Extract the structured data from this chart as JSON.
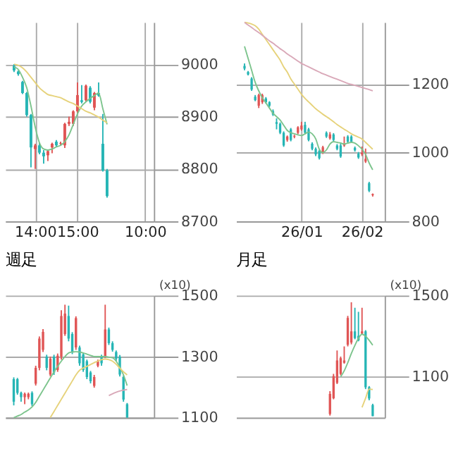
{
  "chart_data": [
    {
      "type": "candlestick",
      "categories": [
        null,
        null,
        null,
        null,
        null,
        "14:00",
        null,
        null,
        null,
        null,
        null,
        null,
        null,
        null,
        null,
        "15:00",
        null,
        null,
        null,
        null,
        null,
        null,
        null,
        null,
        null,
        null,
        null,
        null,
        null,
        null,
        null,
        "10:00"
      ],
      "ohlc": [
        [
          8997,
          9000,
          8985,
          8988
        ],
        [
          8986,
          8988,
          8978,
          8981
        ],
        [
          8966,
          8968,
          8943,
          8945
        ],
        [
          8945,
          8947,
          8900,
          8903
        ],
        [
          8903,
          8905,
          8803,
          8841
        ],
        [
          8838,
          8848,
          8800,
          8845
        ],
        [
          8845,
          8850,
          8828,
          8831
        ],
        [
          8831,
          8836,
          8810,
          8824
        ],
        [
          8826,
          8836,
          8815,
          8834
        ],
        [
          8841,
          8850,
          8830,
          8848
        ],
        [
          8852,
          8855,
          8842,
          8845
        ],
        [
          8848,
          8852,
          8844,
          8849
        ],
        [
          8845,
          8888,
          8840,
          8886
        ],
        [
          8886,
          8900,
          8882,
          8890
        ],
        [
          8886,
          8912,
          8882,
          8910
        ],
        [
          8910,
          8965,
          8905,
          8941
        ],
        [
          8931,
          8960,
          8925,
          8928
        ],
        [
          8931,
          8961,
          8928,
          8959
        ],
        [
          8955,
          8958,
          8925,
          8928
        ],
        [
          8917,
          8947,
          8912,
          8945
        ],
        [
          8945,
          8965,
          8938,
          8940
        ],
        [
          8848,
          8905,
          8795,
          8797
        ],
        [
          8797,
          8800,
          8745,
          8748
        ],
        null,
        null,
        null,
        null,
        null,
        null,
        null,
        null,
        null
      ],
      "colors": [
        "#26b5b5",
        "#26b5b5",
        "#26b5b5",
        "#26b5b5",
        "#26b5b5",
        "#e05555",
        "#26b5b5",
        "#26b5b5",
        "#e05555",
        "#e05555",
        "#26b5b5",
        "#e05555",
        "#e05555",
        "#e05555",
        "#e05555",
        "#e05555",
        "#26b5b5",
        "#e05555",
        "#26b5b5",
        "#e05555",
        "#26b5b5",
        "#26b5b5",
        "#26b5b5",
        null,
        null,
        null,
        null,
        null,
        null,
        null,
        null,
        null
      ],
      "series": [
        {
          "type": "line",
          "color": "#7cc48c",
          "values": [
            8995,
            8990,
            8975,
            8955,
            8920,
            8880,
            8850,
            8838,
            8836,
            8838,
            8842,
            8845,
            8852,
            8865,
            8885,
            8905,
            8920,
            8928,
            8935,
            8940,
            8945,
            8915,
            8885,
            null,
            null,
            null,
            null,
            null,
            null,
            null,
            null,
            null
          ]
        },
        {
          "type": "line",
          "color": "#e6d27a",
          "values": [
            9000,
            8998,
            8993,
            8985,
            8975,
            8965,
            8955,
            8948,
            8942,
            8940,
            8938,
            8936,
            8932,
            8928,
            8925,
            8920,
            8915,
            8910,
            8907,
            8903,
            8899,
            8893,
            8888,
            null,
            null,
            null,
            null,
            null,
            null,
            null,
            null,
            null
          ]
        }
      ],
      "ylim": [
        8700,
        9080
      ],
      "yticks": [
        8700,
        8800,
        8900,
        9000
      ],
      "grid": true
    },
    {
      "type": "candlestick",
      "categories": [
        null,
        null,
        null,
        null,
        null,
        null,
        null,
        null,
        null,
        null,
        null,
        null,
        null,
        null,
        null,
        null,
        "26/01",
        null,
        null,
        null,
        null,
        null,
        null,
        null,
        null,
        null,
        null,
        null,
        null,
        null,
        null,
        null,
        null,
        "26/02",
        null,
        null,
        null,
        null
      ],
      "ohlc": [
        [
          1253,
          1260,
          1240,
          1245
        ],
        [
          1235,
          1238,
          1225,
          1228
        ],
        [
          1216,
          1220,
          1180,
          1184
        ],
        [
          1163,
          1168,
          1150,
          1153
        ],
        [
          1137,
          1172,
          1130,
          1168
        ],
        [
          1147,
          1172,
          1142,
          1168
        ],
        [
          1158,
          1162,
          1143,
          1147
        ],
        [
          1147,
          1150,
          1133,
          1137
        ],
        [
          1121,
          1126,
          1107,
          1111
        ],
        [
          1089,
          1100,
          1068,
          1084
        ],
        [
          1084,
          1088,
          1054,
          1058
        ],
        [
          1058,
          1062,
          1017,
          1021
        ],
        [
          1037,
          1050,
          1032,
          1047
        ],
        [
          1068,
          1072,
          1033,
          1037
        ],
        [
          1047,
          1052,
          1042,
          1049
        ],
        [
          1058,
          1077,
          1054,
          1074
        ],
        [
          1068,
          1090,
          1064,
          1079
        ],
        [
          1081,
          1090,
          1054,
          1058
        ],
        [
          1068,
          1072,
          1033,
          1037
        ],
        [
          1026,
          1030,
          1007,
          1011
        ],
        [
          1011,
          1015,
          990,
          995
        ],
        [
          1005,
          1008,
          980,
          984
        ],
        [
          1000,
          1020,
          996,
          1016
        ],
        [
          1058,
          1062,
          1043,
          1047
        ],
        [
          1042,
          1060,
          1038,
          1053
        ],
        [
          1053,
          1057,
          1033,
          1037
        ],
        [
          1021,
          1025,
          1007,
          1011
        ],
        [
          1021,
          1026,
          985,
          989
        ],
        [
          1021,
          1047,
          1017,
          1026
        ],
        [
          1047,
          1051,
          1028,
          1032
        ],
        [
          1047,
          1051,
          1028,
          1032
        ],
        [
          1014,
          1018,
          1003,
          1007
        ],
        [
          997,
          1002,
          982,
          986
        ],
        [
          995,
          1018,
          990,
          1000
        ],
        [
          974,
          1012,
          970,
          982
        ],
        [
          911,
          915,
          885,
          889
        ],
        [
          876,
          881,
          872,
          879
        ],
        null
      ],
      "colors": [
        "#26b5b5",
        "#26b5b5",
        "#26b5b5",
        "#26b5b5",
        "#e05555",
        "#e05555",
        "#26b5b5",
        "#26b5b5",
        "#26b5b5",
        "#26b5b5",
        "#26b5b5",
        "#26b5b5",
        "#e05555",
        "#26b5b5",
        "#e05555",
        "#e05555",
        "#e05555",
        "#26b5b5",
        "#26b5b5",
        "#26b5b5",
        "#26b5b5",
        "#26b5b5",
        "#e05555",
        "#26b5b5",
        "#e05555",
        "#26b5b5",
        "#26b5b5",
        "#26b5b5",
        "#e05555",
        "#26b5b5",
        "#26b5b5",
        "#26b5b5",
        "#26b5b5",
        "#e05555",
        "#e05555",
        "#26b5b5",
        "#e05555",
        null
      ],
      "series": [
        {
          "type": "line",
          "color": "#7cc48c",
          "values": [
            1310,
            1275,
            1240,
            1205,
            1180,
            1160,
            1145,
            1130,
            1115,
            1105,
            1095,
            1080,
            1065,
            1058,
            1055,
            1052,
            1050,
            1055,
            1060,
            1055,
            1040,
            1010,
            1000,
            1008,
            1025,
            1032,
            1030,
            1028,
            1025,
            1028,
            1030,
            1028,
            1020,
            1010,
            995,
            970,
            950,
            null
          ]
        },
        {
          "type": "line",
          "color": "#e6d27a",
          "values": [
            1380,
            1378,
            1375,
            1370,
            1360,
            1345,
            1330,
            1315,
            1300,
            1285,
            1270,
            1250,
            1235,
            1215,
            1200,
            1185,
            1170,
            1158,
            1148,
            1138,
            1128,
            1120,
            1112,
            1105,
            1098,
            1090,
            1082,
            1075,
            1068,
            1062,
            1055,
            1050,
            1045,
            1040,
            1030,
            1020,
            1010,
            null
          ]
        },
        {
          "type": "line",
          "color": "#d9a8b8",
          "values": [
            1380,
            1372,
            1365,
            1357,
            1350,
            1342,
            1334,
            1326,
            1319,
            1311,
            1303,
            1296,
            1288,
            1281,
            1274,
            1267,
            1260,
            1255,
            1250,
            1245,
            1240,
            1235,
            1230,
            1226,
            1222,
            1218,
            1214,
            1210,
            1206,
            1202,
            1199,
            1196,
            1193,
            1190,
            1187,
            1184,
            1180,
            null
          ]
        }
      ],
      "ylim": [
        800,
        1380
      ],
      "yticks": [
        800,
        1000,
        1200
      ],
      "grid": true
    },
    {
      "type": "candlestick",
      "title": "週足",
      "annotations": [
        "(x10)"
      ],
      "tick_labels": "y",
      "categories": [
        null,
        null,
        null,
        null,
        null,
        null,
        null,
        null,
        null,
        null,
        null,
        null,
        null,
        null,
        null,
        null,
        null,
        null,
        null,
        null,
        null,
        null,
        null,
        null,
        null,
        null,
        null,
        null,
        null,
        null,
        null,
        null,
        null,
        null,
        null,
        null,
        null
      ],
      "ohlc": [
        [
          1226,
          1232,
          1140,
          1152
        ],
        [
          1226,
          1230,
          1175,
          1181
        ],
        [
          1181,
          1185,
          1152,
          1167
        ],
        [
          1167,
          1182,
          1144,
          1178
        ],
        [
          1167,
          1182,
          1160,
          1178
        ],
        [
          1181,
          1186,
          1138,
          1144
        ],
        [
          1211,
          1270,
          1205,
          1263
        ],
        [
          1263,
          1366,
          1255,
          1359
        ],
        [
          1322,
          1390,
          1315,
          1381
        ],
        [
          1300,
          1306,
          1255,
          1263
        ],
        [
          1241,
          1300,
          1235,
          1293
        ],
        [
          1300,
          1306,
          1240,
          1248
        ],
        [
          1256,
          1310,
          1250,
          1303
        ],
        [
          1300,
          1452,
          1290,
          1433
        ],
        [
          1374,
          1470,
          1368,
          1441
        ],
        [
          1433,
          1467,
          1350,
          1359
        ],
        [
          1374,
          1380,
          1308,
          1315
        ],
        [
          1330,
          1432,
          1322,
          1426
        ],
        [
          1330,
          1336,
          1270,
          1278
        ],
        [
          1307,
          1312,
          1250,
          1256
        ],
        [
          1285,
          1290,
          1226,
          1233
        ],
        [
          1248,
          1253,
          1212,
          1219
        ],
        [
          1204,
          1240,
          1198,
          1233
        ],
        [
          1270,
          1290,
          1265,
          1285
        ],
        [
          1300,
          1306,
          1270,
          1278
        ],
        [
          1300,
          1470,
          1295,
          1389
        ],
        [
          1389,
          1395,
          1338,
          1344
        ],
        [
          1344,
          1350,
          1316,
          1322
        ],
        [
          1315,
          1320,
          1286,
          1293
        ],
        [
          1300,
          1305,
          1235,
          1241
        ],
        [
          1233,
          1238,
          1152,
          1159
        ],
        [
          1144,
          1148,
          1100,
          1100
        ],
        null,
        null,
        null,
        null,
        null
      ],
      "colors": [
        "#26b5b5",
        "#26b5b5",
        "#26b5b5",
        "#e05555",
        "#e05555",
        "#26b5b5",
        "#e05555",
        "#e05555",
        "#e05555",
        "#26b5b5",
        "#e05555",
        "#26b5b5",
        "#e05555",
        "#e05555",
        "#e05555",
        "#26b5b5",
        "#26b5b5",
        "#e05555",
        "#26b5b5",
        "#26b5b5",
        "#26b5b5",
        "#26b5b5",
        "#e05555",
        "#e05555",
        "#26b5b5",
        "#e05555",
        "#26b5b5",
        "#26b5b5",
        "#26b5b5",
        "#26b5b5",
        "#26b5b5",
        "#26b5b5",
        null,
        null,
        null,
        null,
        null
      ],
      "series": [
        {
          "type": "line",
          "color": "#7cc48c",
          "values": [
            1100,
            1105,
            1110,
            1118,
            1125,
            1135,
            1150,
            1170,
            1190,
            1210,
            1230,
            1250,
            1268,
            1285,
            1300,
            1312,
            1315,
            1316,
            1315,
            1312,
            1308,
            1304,
            1300,
            1300,
            1300,
            1300,
            1298,
            1296,
            1285,
            1265,
            1240,
            1205,
            null,
            null,
            null,
            null,
            null
          ]
        },
        {
          "type": "line",
          "color": "#e6d27a",
          "values": [
            null,
            null,
            null,
            null,
            null,
            null,
            null,
            null,
            null,
            null,
            1100,
            1120,
            1140,
            1160,
            1180,
            1200,
            1220,
            1240,
            1255,
            1262,
            1268,
            1274,
            1280,
            1285,
            1290,
            1292,
            1290,
            1285,
            1275,
            1262,
            1250,
            1240,
            null,
            null,
            null,
            null,
            null
          ]
        },
        {
          "type": "line",
          "color": "#d9a8b8",
          "values": [
            null,
            null,
            null,
            null,
            null,
            null,
            null,
            null,
            null,
            null,
            null,
            null,
            null,
            null,
            null,
            null,
            null,
            null,
            null,
            null,
            null,
            null,
            null,
            null,
            null,
            null,
            1172,
            1178,
            1183,
            1187,
            1190,
            1192,
            null,
            null,
            null,
            null,
            null
          ]
        }
      ],
      "ylim": [
        1100,
        1500
      ],
      "yticks": [
        1100,
        1300,
        1500
      ],
      "grid": "y"
    },
    {
      "type": "candlestick",
      "title": "月足",
      "annotations": [
        "(x10)"
      ],
      "tick_labels": "y",
      "categories": [
        null,
        null,
        null,
        null,
        null,
        null,
        null,
        null,
        null,
        null,
        null,
        null,
        null,
        null,
        null,
        null,
        null,
        null,
        null,
        null,
        null,
        null,
        null,
        null,
        null,
        null,
        null,
        null,
        null,
        null,
        null,
        null,
        null,
        null,
        null,
        null,
        null,
        null
      ],
      "ohlc": [
        null,
        null,
        null,
        null,
        null,
        null,
        null,
        null,
        null,
        null,
        null,
        null,
        null,
        null,
        null,
        null,
        null,
        null,
        null,
        null,
        null,
        null,
        null,
        null,
        [
          918,
          1030,
          910,
          1016
        ],
        [
          995,
          1115,
          990,
          1104
        ],
        [
          1071,
          1230,
          1065,
          1181
        ],
        [
          1115,
          1200,
          1108,
          1192
        ],
        [
          1170,
          1250,
          1165,
          1181
        ],
        [
          1258,
          1400,
          1250,
          1390
        ],
        [
          1269,
          1467,
          1260,
          1324
        ],
        [
          1324,
          1440,
          1285,
          1291
        ],
        [
          1302,
          1420,
          1275,
          1280
        ],
        [
          1313,
          1440,
          1308,
          1324
        ],
        [
          1324,
          1330,
          1040,
          1049
        ],
        [
          1049,
          1055,
          985,
          994
        ],
        [
          962,
          968,
          907,
          907
        ],
        null
      ],
      "colors": [
        null,
        null,
        null,
        null,
        null,
        null,
        null,
        null,
        null,
        null,
        null,
        null,
        null,
        null,
        null,
        null,
        null,
        null,
        null,
        null,
        null,
        null,
        null,
        null,
        "#e05555",
        "#e05555",
        "#e05555",
        "#e05555",
        "#e05555",
        "#e05555",
        "#e05555",
        "#26b5b5",
        "#26b5b5",
        "#e05555",
        "#26b5b5",
        "#26b5b5",
        "#26b5b5",
        null
      ],
      "series": [
        {
          "type": "line",
          "color": "#7cc48c",
          "values": [
            null,
            null,
            null,
            null,
            null,
            null,
            null,
            null,
            null,
            null,
            null,
            null,
            null,
            null,
            null,
            null,
            null,
            null,
            null,
            null,
            null,
            null,
            null,
            null,
            null,
            null,
            null,
            1100,
            1130,
            1170,
            1215,
            1255,
            1290,
            1310,
            1300,
            1280,
            1256,
            null
          ]
        },
        {
          "type": "line",
          "color": "#e6d27a",
          "values": [
            null,
            null,
            null,
            null,
            null,
            null,
            null,
            null,
            null,
            null,
            null,
            null,
            null,
            null,
            null,
            null,
            null,
            null,
            null,
            null,
            null,
            null,
            null,
            null,
            null,
            null,
            null,
            null,
            null,
            null,
            null,
            null,
            null,
            950,
            995,
            1040,
            1038,
            null
          ]
        }
      ],
      "ylim": [
        900,
        1500
      ],
      "yticks": [
        1100,
        1500
      ],
      "grid": "y"
    }
  ]
}
